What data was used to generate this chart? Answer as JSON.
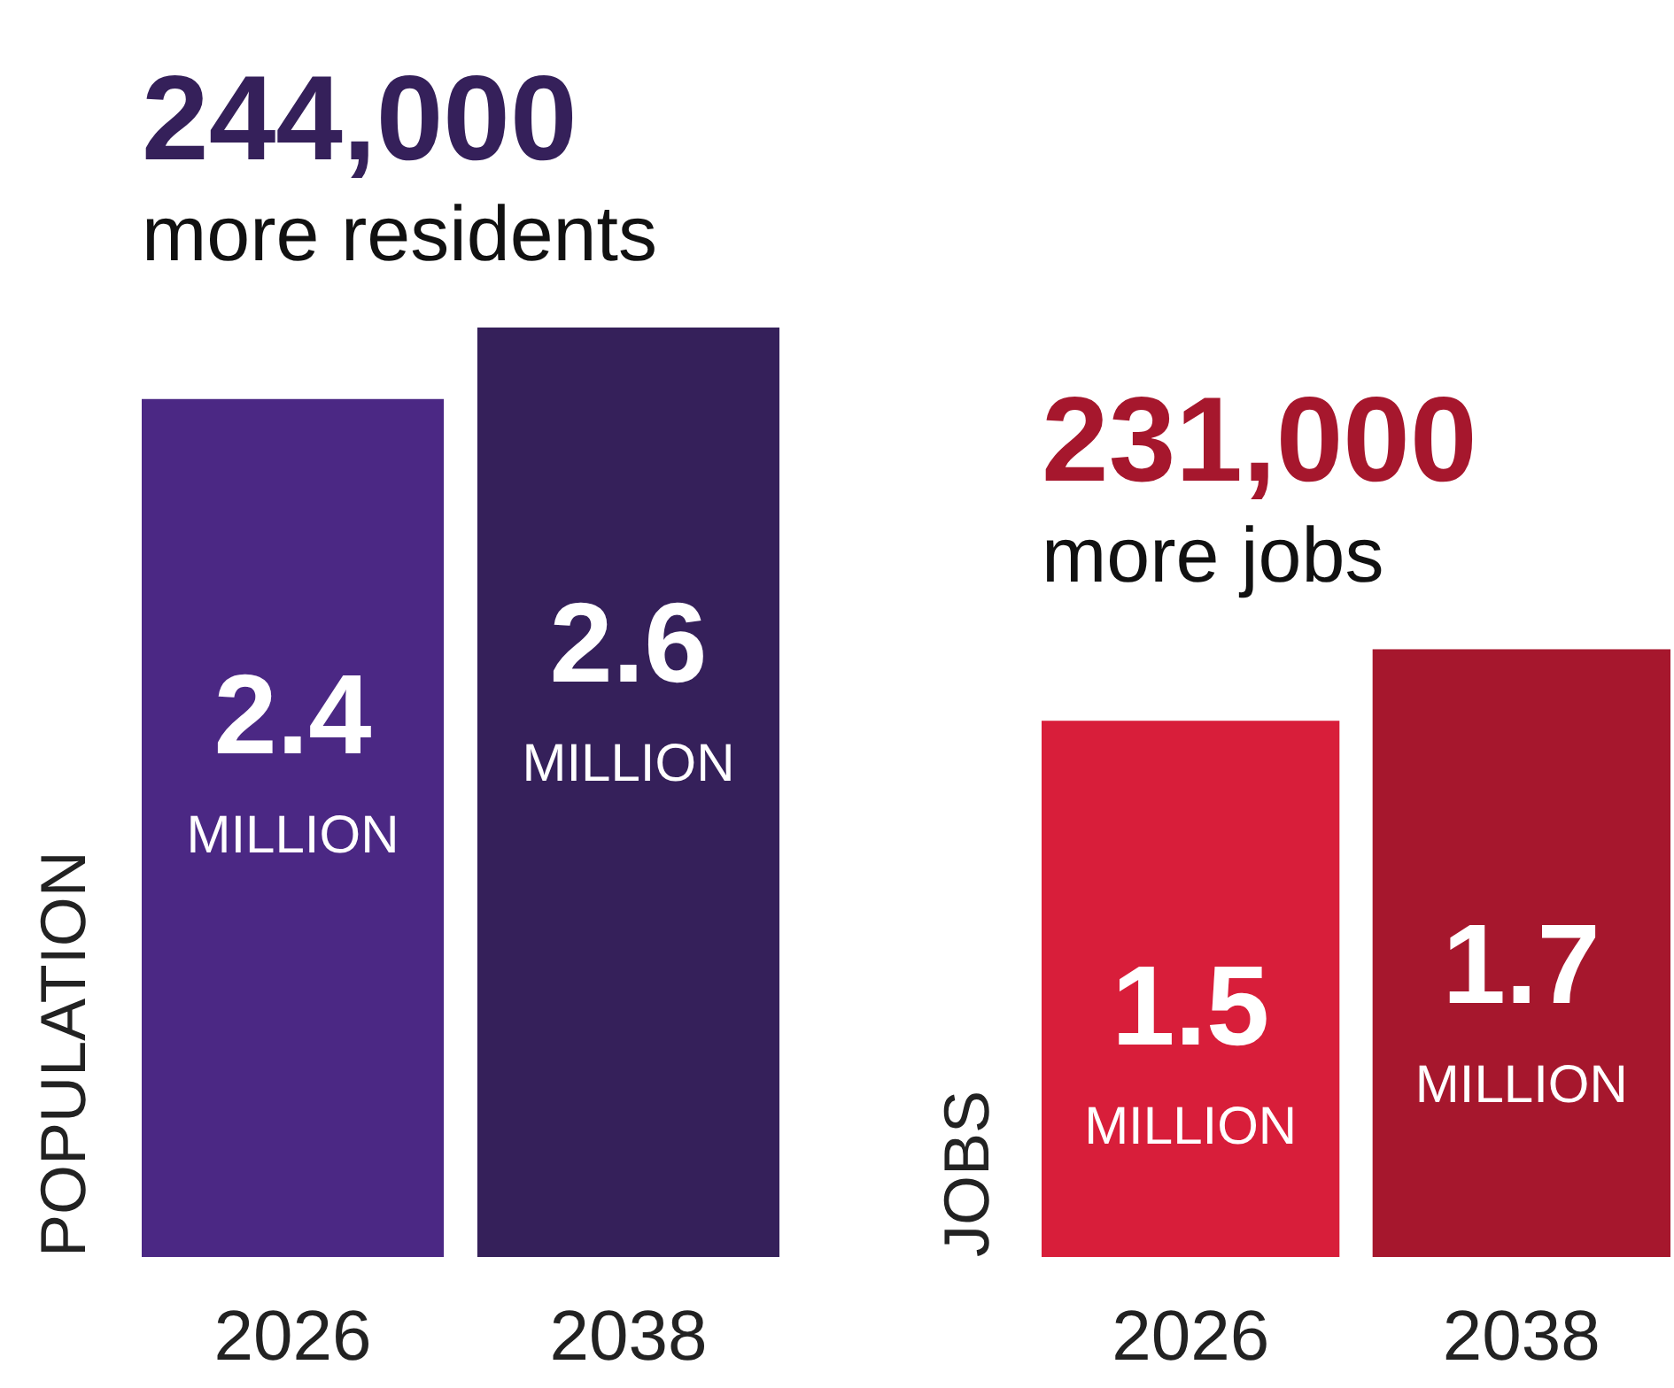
{
  "chart_data": [
    {
      "type": "bar",
      "title": "244,000",
      "subtitle": "more residents",
      "ylabel": "POPULATION",
      "categories": [
        "2026",
        "2038"
      ],
      "values": [
        2.4,
        2.6
      ],
      "colors": [
        "#4b2884",
        "#35205a"
      ],
      "value_labels": [
        "2.4 MILLION",
        "2.6 MILLION"
      ]
    },
    {
      "type": "bar",
      "title": "231,000",
      "subtitle": "more jobs",
      "ylabel": "JOBS",
      "categories": [
        "2026",
        "2038"
      ],
      "values": [
        1.5,
        1.7
      ],
      "colors": [
        "#d81e3a",
        "#a6172d"
      ],
      "value_labels": [
        "1.5 MILLION",
        "1.7 MILLION"
      ]
    }
  ]
}
